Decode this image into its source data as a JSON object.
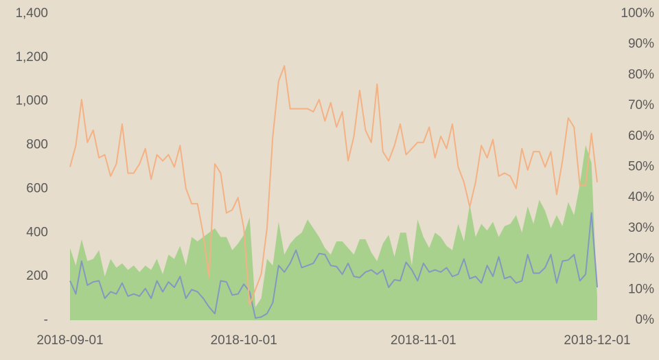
{
  "chart_data": {
    "type": "combo",
    "x": [
      "2018-09-01",
      "2018-09-02",
      "2018-09-03",
      "2018-09-04",
      "2018-09-05",
      "2018-09-06",
      "2018-09-07",
      "2018-09-08",
      "2018-09-09",
      "2018-09-10",
      "2018-09-11",
      "2018-09-12",
      "2018-09-13",
      "2018-09-14",
      "2018-09-15",
      "2018-09-16",
      "2018-09-17",
      "2018-09-18",
      "2018-09-19",
      "2018-09-20",
      "2018-09-21",
      "2018-09-22",
      "2018-09-23",
      "2018-09-24",
      "2018-09-25",
      "2018-09-26",
      "2018-09-27",
      "2018-09-28",
      "2018-09-29",
      "2018-09-30",
      "2018-10-01",
      "2018-10-02",
      "2018-10-03",
      "2018-10-04",
      "2018-10-05",
      "2018-10-06",
      "2018-10-07",
      "2018-10-08",
      "2018-10-09",
      "2018-10-10",
      "2018-10-11",
      "2018-10-12",
      "2018-10-13",
      "2018-10-14",
      "2018-10-15",
      "2018-10-16",
      "2018-10-17",
      "2018-10-18",
      "2018-10-19",
      "2018-10-20",
      "2018-10-21",
      "2018-10-22",
      "2018-10-23",
      "2018-10-24",
      "2018-10-25",
      "2018-10-26",
      "2018-10-27",
      "2018-10-28",
      "2018-10-29",
      "2018-10-30",
      "2018-10-31",
      "2018-11-01",
      "2018-11-02",
      "2018-11-03",
      "2018-11-04",
      "2018-11-05",
      "2018-11-06",
      "2018-11-07",
      "2018-11-08",
      "2018-11-09",
      "2018-11-10",
      "2018-11-11",
      "2018-11-12",
      "2018-11-13",
      "2018-11-14",
      "2018-11-15",
      "2018-11-16",
      "2018-11-17",
      "2018-11-18",
      "2018-11-19",
      "2018-11-20",
      "2018-11-21",
      "2018-11-22",
      "2018-11-23",
      "2018-11-24",
      "2018-11-25",
      "2018-11-26",
      "2018-11-27",
      "2018-11-28",
      "2018-11-29",
      "2018-11-30",
      "2018-12-01"
    ],
    "series": [
      {
        "type": "area",
        "color": "#a9d18e",
        "axis": "y",
        "values": [
          330,
          250,
          370,
          270,
          280,
          320,
          200,
          280,
          240,
          260,
          230,
          250,
          220,
          250,
          230,
          280,
          210,
          300,
          280,
          340,
          250,
          380,
          360,
          380,
          400,
          420,
          380,
          380,
          320,
          350,
          390,
          470,
          60,
          100,
          280,
          250,
          450,
          300,
          350,
          380,
          400,
          460,
          420,
          380,
          330,
          300,
          360,
          360,
          330,
          300,
          370,
          370,
          310,
          270,
          350,
          390,
          290,
          400,
          400,
          250,
          460,
          380,
          330,
          400,
          380,
          340,
          320,
          440,
          360,
          530,
          380,
          440,
          410,
          450,
          380,
          430,
          440,
          480,
          400,
          520,
          440,
          550,
          500,
          420,
          480,
          430,
          540,
          480,
          620,
          800,
          720,
          100
        ]
      },
      {
        "type": "line",
        "color": "#8497c0",
        "axis": "y",
        "values": [
          180,
          120,
          270,
          160,
          175,
          180,
          100,
          130,
          120,
          170,
          110,
          120,
          110,
          145,
          100,
          180,
          130,
          175,
          150,
          200,
          100,
          140,
          130,
          100,
          60,
          30,
          180,
          175,
          115,
          120,
          165,
          130,
          10,
          15,
          30,
          80,
          250,
          220,
          260,
          320,
          240,
          250,
          260,
          305,
          300,
          250,
          245,
          210,
          260,
          200,
          195,
          220,
          230,
          210,
          230,
          150,
          185,
          180,
          265,
          230,
          180,
          260,
          220,
          230,
          220,
          240,
          200,
          210,
          280,
          190,
          200,
          170,
          250,
          200,
          290,
          190,
          200,
          170,
          180,
          300,
          215,
          215,
          240,
          300,
          170,
          270,
          275,
          300,
          180,
          210,
          490,
          150
        ]
      },
      {
        "type": "line",
        "color": "#f4b183",
        "axis": "y2",
        "values": [
          50,
          57,
          72,
          58,
          62,
          53,
          54,
          47,
          51,
          64,
          48,
          48,
          51,
          56,
          46,
          54,
          52,
          54,
          50,
          57,
          43,
          38,
          38,
          28,
          14,
          51,
          48,
          35,
          36,
          40,
          30,
          5,
          10,
          15,
          30,
          60,
          78,
          83,
          69,
          69,
          69,
          69,
          68,
          72,
          65,
          71,
          63,
          68,
          52,
          60,
          75,
          62,
          58,
          77,
          55,
          52,
          57,
          64,
          54,
          56,
          58,
          58,
          63,
          53,
          60,
          56,
          64,
          50,
          45,
          37,
          45,
          57,
          53,
          59,
          47,
          48,
          47,
          43,
          56,
          49,
          55,
          55,
          50,
          55,
          41,
          52,
          66,
          63,
          44,
          44,
          61,
          45
        ]
      }
    ],
    "xlim": [
      "2018-09-01",
      "2018-12-01"
    ],
    "xticks": [
      "2018-09-01",
      "2018-10-01",
      "2018-11-01",
      "2018-12-01"
    ],
    "ylim": [
      0,
      1400
    ],
    "yticks": [
      {
        "value": 0,
        "label": "-"
      },
      {
        "value": 200,
        "label": "200"
      },
      {
        "value": 400,
        "label": "400"
      },
      {
        "value": 600,
        "label": "600"
      },
      {
        "value": 800,
        "label": "800"
      },
      {
        "value": 1000,
        "label": "1,000"
      },
      {
        "value": 1200,
        "label": "1,200"
      },
      {
        "value": 1400,
        "label": "1,400"
      }
    ],
    "y2lim": [
      0,
      100
    ],
    "y2ticks": [
      {
        "value": 0,
        "label": "0%"
      },
      {
        "value": 10,
        "label": "10%"
      },
      {
        "value": 20,
        "label": "20%"
      },
      {
        "value": 30,
        "label": "30%"
      },
      {
        "value": 40,
        "label": "40%"
      },
      {
        "value": 50,
        "label": "50%"
      },
      {
        "value": 60,
        "label": "60%"
      },
      {
        "value": 70,
        "label": "70%"
      },
      {
        "value": 80,
        "label": "80%"
      },
      {
        "value": 90,
        "label": "90%"
      },
      {
        "value": 100,
        "label": "100%"
      }
    ]
  }
}
